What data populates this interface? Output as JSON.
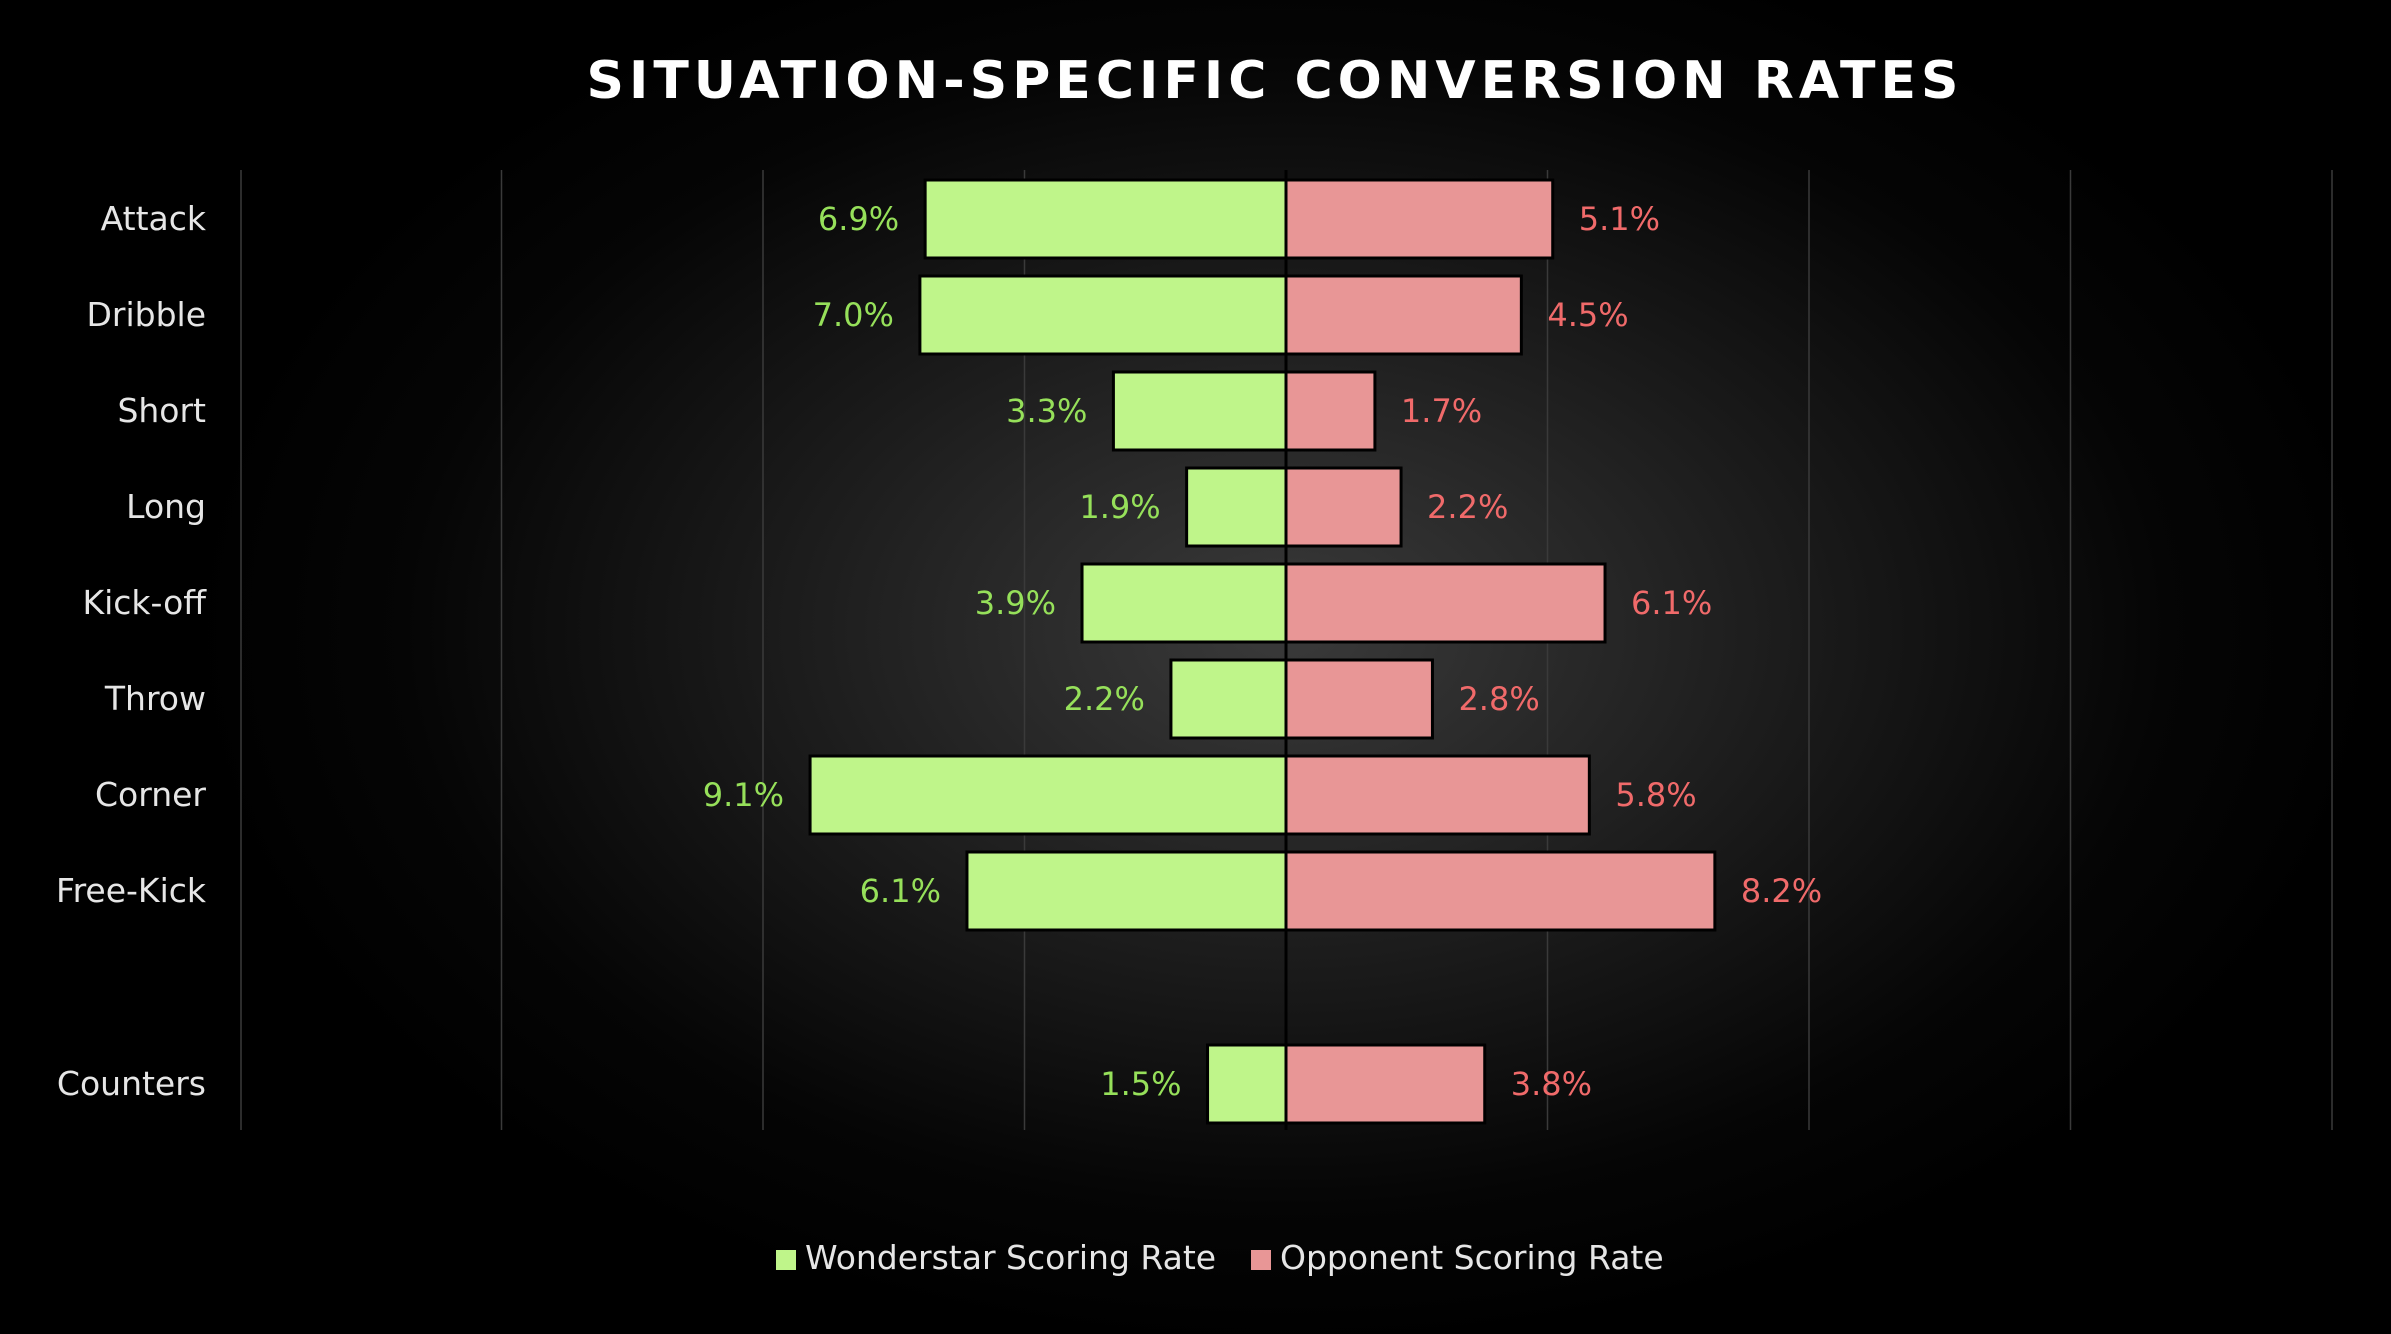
{
  "chart_data": {
    "type": "bar",
    "orientation": "horizontal-diverging",
    "title": "SITUATION-SPECIFIC CONVERSION RATES",
    "categories": [
      "Attack",
      "Dribble",
      "Short",
      "Long",
      "Kick-off",
      "Throw",
      "Corner",
      "Free-Kick",
      "Counters"
    ],
    "series": [
      {
        "name": "Wonderstar Scoring Rate",
        "direction": "left",
        "color": "#bff58a",
        "label_color": "#96e05a",
        "values": [
          6.9,
          7.0,
          3.3,
          1.9,
          3.9,
          2.2,
          9.1,
          6.1,
          1.5
        ],
        "labels": [
          "6.9%",
          "7.0%",
          "3.3%",
          "1.9%",
          "3.9%",
          "2.2%",
          "9.1%",
          "6.1%",
          "1.5%"
        ]
      },
      {
        "name": "Opponent Scoring Rate",
        "direction": "right",
        "color": "#e89696",
        "label_color": "#f06a6a",
        "values": [
          5.1,
          4.5,
          1.7,
          2.2,
          6.1,
          2.8,
          5.8,
          8.2,
          3.8
        ],
        "labels": [
          "5.1%",
          "4.5%",
          "1.7%",
          "2.2%",
          "6.1%",
          "2.8%",
          "5.8%",
          "8.2%",
          "3.8%"
        ]
      }
    ],
    "xlim": [
      -20,
      20
    ],
    "grid": "vertical lines",
    "legend": "bottom-center",
    "background": "#000000"
  }
}
